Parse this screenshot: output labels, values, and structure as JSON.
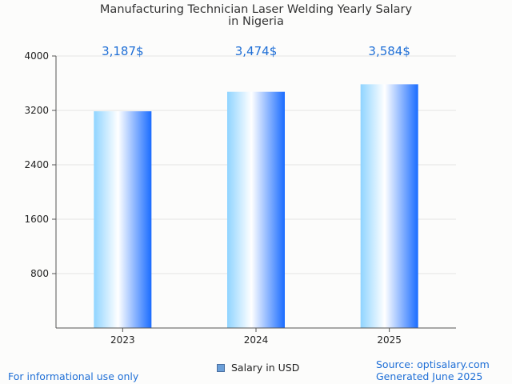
{
  "title_line1": "Manufacturing Technician Laser Welding Yearly Salary",
  "title_line2": "in Nigeria",
  "footer": {
    "disclaimer": "For informational use only",
    "source": "Source: optisalary.com",
    "generated": "Generated June 2025"
  },
  "legend": {
    "label": "Salary in USD"
  },
  "colors": {
    "bar_gradient": [
      "#8fd4ff",
      "#ffffff",
      "#1a6cff"
    ],
    "value_label": "#1f6fd6",
    "grid": "#e3e3e3",
    "axis": "#555555"
  },
  "chart_data": {
    "type": "bar",
    "categories": [
      "2023",
      "2024",
      "2025"
    ],
    "series": [
      {
        "name": "Salary in USD",
        "values": [
          3187,
          3474,
          3584
        ]
      }
    ],
    "value_labels": [
      "3,187$",
      "3,474$",
      "3,584$"
    ],
    "yticks": [
      800,
      1600,
      2400,
      3200,
      4000
    ],
    "ylim": [
      0,
      4000
    ],
    "grid": true,
    "legend_position": "bottom"
  }
}
